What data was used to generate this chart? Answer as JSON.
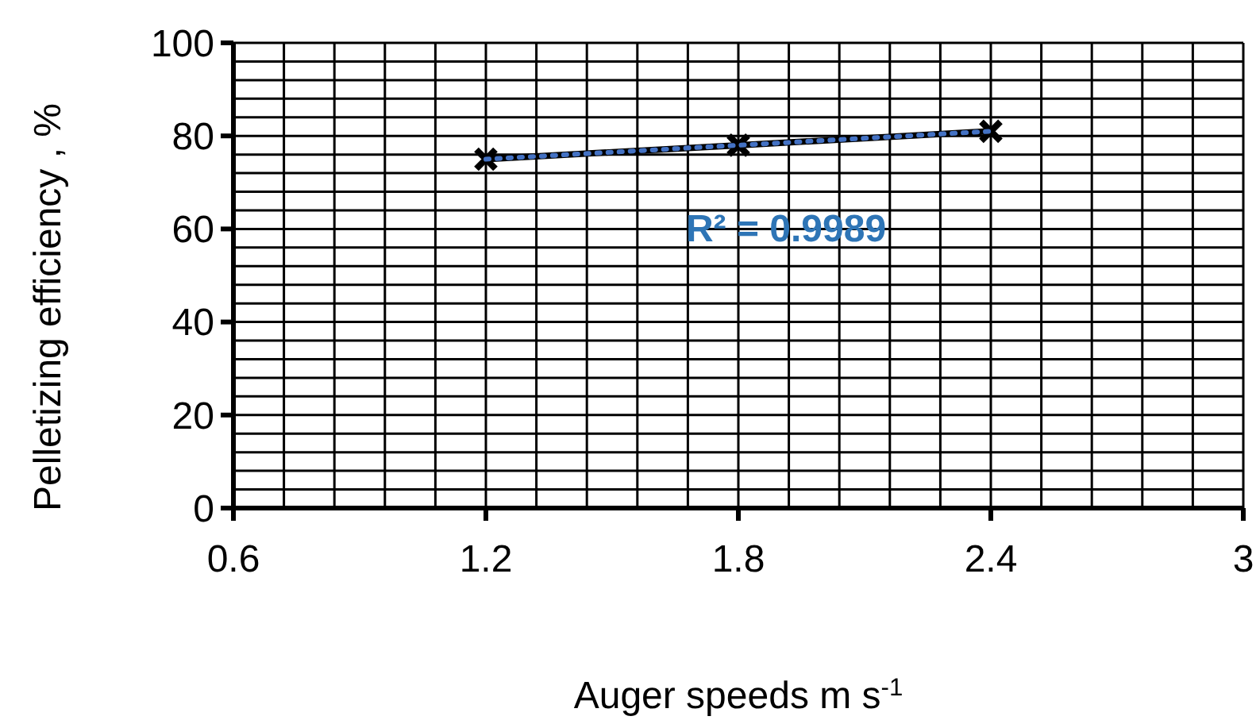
{
  "chart_data": {
    "type": "line",
    "xlabel": "Auger speeds m s$^{-1}$",
    "ylabel": "Pelletizing efficiency , %",
    "xlim": [
      0.6,
      3
    ],
    "ylim": [
      0,
      100
    ],
    "xticks": [
      0.6,
      {
        "value": 0.72,
        "label": null
      },
      {
        "value": 0.84,
        "label": null
      },
      {
        "value": 0.96,
        "label": null
      },
      {
        "value": 1.08,
        "label": null
      },
      1.2,
      {
        "value": 1.32,
        "label": null
      },
      {
        "value": 1.44,
        "label": null
      },
      {
        "value": 1.56,
        "label": null
      },
      {
        "value": 1.68,
        "label": null
      },
      1.8,
      {
        "value": 1.92,
        "label": null
      },
      {
        "value": 2.04,
        "label": null
      },
      {
        "value": 2.16,
        "label": null
      },
      {
        "value": 2.28,
        "label": null
      },
      2.4,
      {
        "value": 2.52,
        "label": null
      },
      {
        "value": 2.64,
        "label": null
      },
      {
        "value": 2.76,
        "label": null
      },
      {
        "value": 2.88,
        "label": null
      },
      3
    ],
    "yticks": [
      0,
      {
        "value": 4,
        "label": null
      },
      {
        "value": 8,
        "label": null
      },
      {
        "value": 12,
        "label": null
      },
      {
        "value": 16,
        "label": null
      },
      20,
      {
        "value": 24,
        "label": null
      },
      {
        "value": 28,
        "label": null
      },
      {
        "value": 32,
        "label": null
      },
      {
        "value": 36,
        "label": null
      },
      40,
      {
        "value": 44,
        "label": null
      },
      {
        "value": 48,
        "label": null
      },
      {
        "value": 52,
        "label": null
      },
      {
        "value": 56,
        "label": null
      },
      60,
      {
        "value": 64,
        "label": null
      },
      {
        "value": 68,
        "label": null
      },
      {
        "value": 72,
        "label": null
      },
      {
        "value": 76,
        "label": null
      },
      80,
      {
        "value": 84,
        "label": null
      },
      {
        "value": 88,
        "label": null
      },
      {
        "value": 92,
        "label": null
      },
      {
        "value": 96,
        "label": null
      },
      100
    ],
    "grid": true,
    "series": [
      {
        "color": "#000000",
        "x": [
          1.2,
          1.8,
          2.4
        ],
        "values": [
          75,
          78,
          81
        ],
        "marker": "cross",
        "line_style": "solid"
      },
      {
        "color": "#4472c4",
        "x": [
          1.2,
          2.4
        ],
        "values": [
          75,
          81
        ],
        "marker": "none",
        "line_style": "dotted"
      }
    ],
    "annotations": [
      "R² = 0.9989"
    ]
  }
}
